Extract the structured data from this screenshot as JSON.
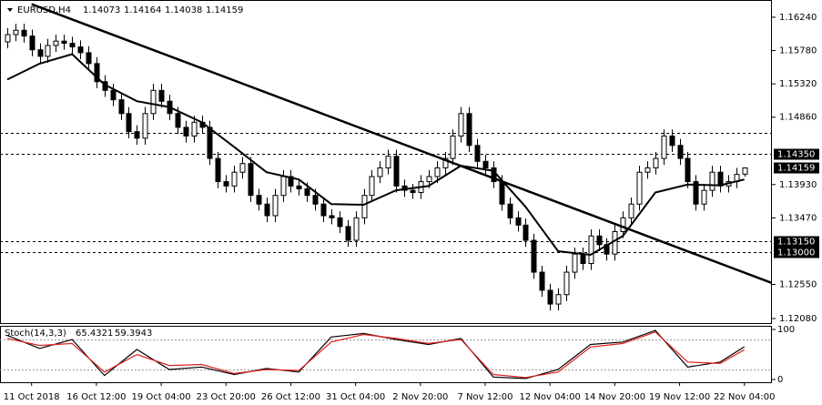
{
  "chart_data": {
    "type": "candlestick",
    "title": "EURUSD,H4",
    "categories": [
      null,
      null,
      null,
      "11 Oct 2018",
      null,
      null,
      null,
      null,
      null,
      null,
      null,
      "16 Oct 12:00",
      null,
      null,
      null,
      null,
      null,
      null,
      null,
      "19 Oct 04:00",
      null,
      null,
      null,
      null,
      null,
      null,
      null,
      "23 Oct 20:00",
      null,
      null,
      null,
      null,
      null,
      null,
      null,
      "26 Oct 12:00",
      null,
      null,
      null,
      null,
      null,
      null,
      null,
      "31 Oct 04:00",
      null,
      null,
      null,
      null,
      null,
      null,
      null,
      "2 Nov 20:00",
      null,
      null,
      null,
      null,
      null,
      null,
      null,
      "7 Nov 12:00",
      null,
      null,
      null,
      null,
      null,
      null,
      null,
      "12 Nov 04:00",
      null,
      null,
      null,
      null,
      null,
      null,
      null,
      "14 Nov 20:00",
      null,
      null,
      null,
      null,
      null,
      null,
      null,
      "19 Nov 12:00",
      null,
      null,
      null,
      null,
      null,
      null,
      null,
      "22 Nov 04:00"
    ],
    "xlim": [
      -0.9,
      94.4
    ],
    "ylim": [
      1.12017,
      1.16415
    ],
    "yticks": [
      {
        "value": 1.1624,
        "label": "1.16240"
      },
      {
        "value": 1.1578,
        "label": "1.15780"
      },
      {
        "value": 1.1532,
        "label": "1.15320"
      },
      {
        "value": 1.1486,
        "label": "1.14860"
      },
      {
        "value": 1.1393,
        "label": "1.13930"
      },
      {
        "value": 1.1347,
        "label": "1.13470"
      },
      {
        "value": 1.1255,
        "label": "1.12550"
      },
      {
        "value": 1.1208,
        "label": "1.12080"
      }
    ],
    "levels": [
      1.1464,
      {
        "value": 1.1435,
        "label": "1.14350"
      },
      {
        "value": 1.1315,
        "label": "1.13150"
      },
      {
        "value": 1.13,
        "label": "1.13000"
      }
    ],
    "series": [
      {
        "up_color": "#ffffff",
        "down_color": "#000000",
        "open": [
          1.159,
          1.16,
          1.1606,
          1.1598,
          1.1579,
          1.157,
          1.1585,
          1.1591,
          1.1588,
          1.1583,
          1.1575,
          1.156,
          1.1535,
          1.1523,
          1.151,
          1.1491,
          1.1466,
          1.1457,
          1.1491,
          1.1523,
          1.1508,
          1.1491,
          1.1472,
          1.146,
          1.1479,
          1.1472,
          1.1429,
          1.1397,
          1.1391,
          1.141,
          1.1422,
          1.1378,
          1.1366,
          1.135,
          1.1378,
          1.1404,
          1.1391,
          1.1387,
          1.1378,
          1.1366,
          1.135,
          1.1347,
          1.1335,
          1.1316,
          1.1347,
          1.1378,
          1.1404,
          1.1416,
          1.1432,
          1.1391,
          1.1385,
          1.1382,
          1.1397,
          1.1404,
          1.1416,
          1.1429,
          1.146,
          1.1491,
          1.1447,
          1.1425,
          1.1416,
          1.1397,
          1.1366,
          1.1347,
          1.1337,
          1.1316,
          1.1272,
          1.1247,
          1.1228,
          1.1241,
          1.1272,
          1.1297,
          1.1284,
          1.1322,
          1.131,
          1.1297,
          1.1328,
          1.1347,
          1.1366,
          1.141,
          1.1416,
          1.1429,
          1.146,
          1.1447,
          1.1429,
          1.1397,
          1.1366,
          1.1385,
          1.141,
          1.1391,
          1.1397,
          1.14073
        ],
        "high": [
          1.1609,
          1.1615,
          1.1615,
          1.1607,
          1.1588,
          1.1594,
          1.16,
          1.16,
          1.1597,
          1.1592,
          1.1584,
          1.1569,
          1.1544,
          1.1532,
          1.1519,
          1.15,
          1.1475,
          1.15,
          1.1532,
          1.1532,
          1.1517,
          1.15,
          1.1481,
          1.1488,
          1.1488,
          1.1481,
          1.1438,
          1.1406,
          1.1419,
          1.1431,
          1.1431,
          1.1387,
          1.1375,
          1.1387,
          1.1413,
          1.1413,
          1.14,
          1.1396,
          1.1387,
          1.1375,
          1.1359,
          1.1356,
          1.1344,
          1.1356,
          1.1387,
          1.1413,
          1.1425,
          1.1441,
          1.1441,
          1.14,
          1.1394,
          1.1406,
          1.1413,
          1.1425,
          1.1438,
          1.1469,
          1.15,
          1.15,
          1.1456,
          1.1434,
          1.1425,
          1.1406,
          1.1375,
          1.1356,
          1.1346,
          1.1325,
          1.1281,
          1.1256,
          1.125,
          1.1281,
          1.1306,
          1.1306,
          1.1331,
          1.1331,
          1.1319,
          1.1337,
          1.1356,
          1.1375,
          1.1419,
          1.1425,
          1.1438,
          1.1469,
          1.1469,
          1.1456,
          1.1438,
          1.1406,
          1.1394,
          1.1419,
          1.1419,
          1.1406,
          1.1416,
          1.14164
        ],
        "low": [
          1.1581,
          1.1591,
          1.1589,
          1.157,
          1.1561,
          1.1561,
          1.1576,
          1.1579,
          1.1574,
          1.1566,
          1.1551,
          1.1526,
          1.1514,
          1.1501,
          1.1482,
          1.1457,
          1.1448,
          1.1448,
          1.1482,
          1.1499,
          1.1482,
          1.1463,
          1.1451,
          1.1451,
          1.1463,
          1.142,
          1.1388,
          1.1382,
          1.1382,
          1.1401,
          1.1369,
          1.1357,
          1.1341,
          1.1341,
          1.1369,
          1.1382,
          1.1378,
          1.1369,
          1.1357,
          1.1341,
          1.1338,
          1.1326,
          1.1307,
          1.1307,
          1.1338,
          1.1369,
          1.1395,
          1.1407,
          1.1382,
          1.1376,
          1.1373,
          1.1373,
          1.1388,
          1.1395,
          1.1407,
          1.142,
          1.1451,
          1.1438,
          1.1416,
          1.1407,
          1.1388,
          1.1357,
          1.1338,
          1.1328,
          1.1307,
          1.1263,
          1.1238,
          1.1219,
          1.1219,
          1.1232,
          1.1263,
          1.1275,
          1.1275,
          1.1301,
          1.1288,
          1.1288,
          1.1319,
          1.1338,
          1.1357,
          1.1401,
          1.1407,
          1.142,
          1.1438,
          1.142,
          1.1388,
          1.1357,
          1.1357,
          1.1376,
          1.1382,
          1.1382,
          1.1388,
          1.14038
        ],
        "close": [
          1.16,
          1.1606,
          1.1598,
          1.1579,
          1.157,
          1.1585,
          1.1591,
          1.1588,
          1.1583,
          1.1575,
          1.156,
          1.1535,
          1.1523,
          1.151,
          1.1491,
          1.1466,
          1.1457,
          1.1491,
          1.1523,
          1.1508,
          1.1491,
          1.1472,
          1.146,
          1.1479,
          1.1472,
          1.1429,
          1.1397,
          1.1391,
          1.141,
          1.1422,
          1.1378,
          1.1366,
          1.135,
          1.1378,
          1.1404,
          1.1391,
          1.1387,
          1.1378,
          1.1366,
          1.135,
          1.1347,
          1.1335,
          1.1316,
          1.1347,
          1.1378,
          1.1404,
          1.1416,
          1.1432,
          1.1391,
          1.1385,
          1.1382,
          1.1397,
          1.1404,
          1.1416,
          1.1429,
          1.146,
          1.1491,
          1.1447,
          1.1425,
          1.1416,
          1.1397,
          1.1366,
          1.1347,
          1.1337,
          1.1316,
          1.1272,
          1.1247,
          1.1228,
          1.1241,
          1.1272,
          1.1297,
          1.1284,
          1.1322,
          1.131,
          1.1297,
          1.1328,
          1.1347,
          1.1366,
          1.141,
          1.1416,
          1.1429,
          1.146,
          1.1447,
          1.1429,
          1.1397,
          1.1366,
          1.1385,
          1.141,
          1.1391,
          1.1397,
          1.1407,
          1.14159
        ]
      }
    ],
    "ma": {
      "color": "#000000",
      "x": [
        0,
        4,
        8,
        12,
        16,
        20,
        24,
        28,
        32,
        36,
        40,
        44,
        48,
        52,
        56,
        60,
        64,
        68,
        72,
        76,
        80,
        84,
        88,
        91
      ],
      "values": [
        1.1538,
        1.156,
        1.1573,
        1.1531,
        1.1508,
        1.15,
        1.1479,
        1.1445,
        1.141,
        1.14,
        1.1366,
        1.1365,
        1.1385,
        1.1391,
        1.1419,
        1.1412,
        1.1362,
        1.1301,
        1.1296,
        1.1322,
        1.1382,
        1.1393,
        1.1392,
        1.14
      ]
    },
    "trendline": {
      "color": "#000000",
      "x": [
        3,
        94.4
      ],
      "values": [
        1.1642,
        1.1257
      ]
    },
    "stoch": {
      "type": "line",
      "title": "Stoch(14,3,3)",
      "ylim": [
        0,
        100
      ],
      "yticks": [
        100,
        0
      ],
      "levels": [
        80,
        20
      ],
      "x": [
        0,
        4,
        8,
        12,
        16,
        20,
        24,
        28,
        32,
        36,
        40,
        44,
        48,
        52,
        56,
        60,
        64,
        68,
        72,
        76,
        80,
        84,
        88,
        91
      ],
      "series": [
        {
          "color": "#000000",
          "values": [
            88,
            62,
            80,
            8,
            60,
            20,
            25,
            10,
            22,
            15,
            85,
            92,
            80,
            70,
            82,
            5,
            2,
            20,
            70,
            75,
            98,
            25,
            35,
            65.4321
          ]
        },
        {
          "color": "#e02020",
          "values": [
            82,
            68,
            72,
            15,
            50,
            28,
            30,
            12,
            20,
            18,
            75,
            90,
            82,
            72,
            80,
            10,
            4,
            15,
            65,
            72,
            95,
            35,
            32,
            59.3943
          ]
        }
      ]
    }
  }
}
